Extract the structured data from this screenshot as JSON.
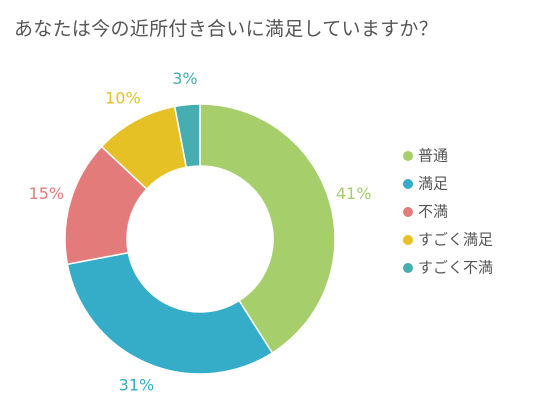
{
  "chart_data": {
    "type": "pie",
    "donut": true,
    "title": "あなたは今の近所付き合いに満足していますか？",
    "categories": [
      "普通",
      "満足",
      "不満",
      "すごく満足",
      "すごく不満"
    ],
    "values": [
      41,
      31,
      15,
      10,
      3
    ],
    "value_labels": [
      "41%",
      "31%",
      "15%",
      "10%",
      "3%"
    ],
    "colors": [
      "#a6ce6a",
      "#35adc8",
      "#e27b79",
      "#e6c125",
      "#46adb0"
    ],
    "legend_placement": "right"
  }
}
